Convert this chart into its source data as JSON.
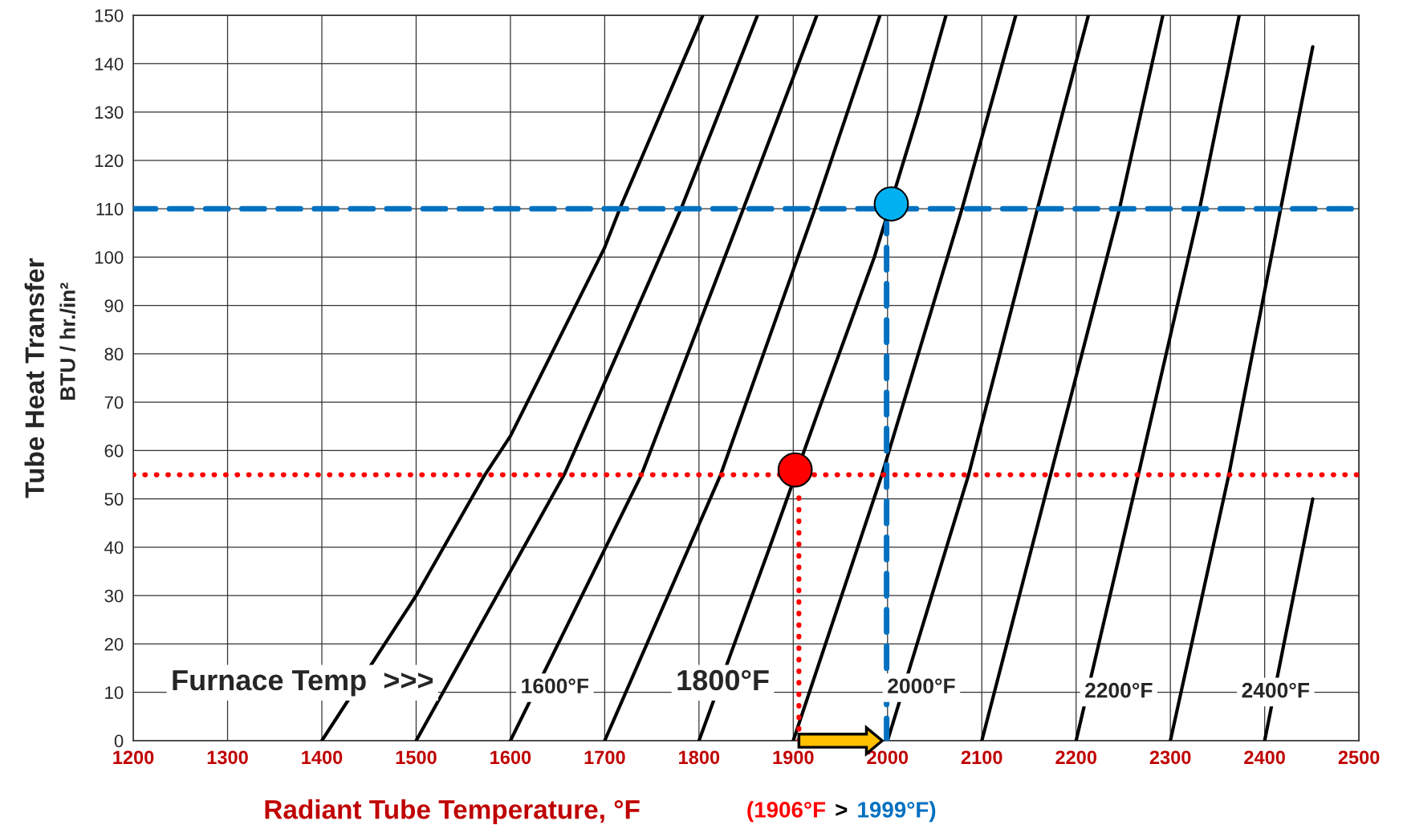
{
  "chart_data": {
    "type": "line",
    "xlabel": "Radiant Tube Temperature, °F",
    "ylabel": "Tube Heat Transfer\nBTU / hr./in²",
    "xlim": [
      1200,
      2500
    ],
    "xticks": [
      1200,
      1300,
      1400,
      1500,
      1600,
      1700,
      1800,
      1900,
      2000,
      2100,
      2200,
      2300,
      2400,
      2500
    ],
    "ylim": [
      0,
      150
    ],
    "yticks": [
      0,
      10,
      20,
      30,
      40,
      50,
      60,
      70,
      80,
      90,
      100,
      110,
      120,
      130,
      140,
      150
    ],
    "grid": true,
    "marker": "none",
    "series": [
      {
        "color": "#000000",
        "x": [
          1400,
          1500,
          1573,
          1600,
          1700,
          1716,
          1804
        ],
        "values": [
          0,
          30,
          55,
          63,
          102,
          110,
          150
        ]
      },
      {
        "color": "#000000",
        "x": [
          1500,
          1657,
          1781,
          1862
        ],
        "values": [
          0,
          55,
          110,
          150
        ]
      },
      {
        "color": "#000000",
        "x": [
          1600,
          1739,
          1847,
          1925
        ],
        "values": [
          0,
          55,
          110,
          150
        ]
      },
      {
        "color": "#000000",
        "x": [
          1700,
          1823,
          1923,
          1992
        ],
        "values": [
          0,
          55,
          110,
          150
        ]
      },
      {
        "color": "#000000",
        "x": [
          1800,
          1875,
          1930,
          1986,
          2033,
          2062
        ],
        "values": [
          0,
          40,
          70,
          100,
          130,
          150
        ]
      },
      {
        "color": "#000000",
        "x": [
          1900,
          1994,
          2079,
          2136
        ],
        "values": [
          0,
          55,
          110,
          150
        ]
      },
      {
        "color": "#000000",
        "x": [
          2000,
          2086,
          2159,
          2213
        ],
        "values": [
          0,
          55,
          110,
          150
        ]
      },
      {
        "color": "#000000",
        "x": [
          2100,
          2173,
          2246,
          2292
        ],
        "values": [
          0,
          55,
          110,
          150
        ]
      },
      {
        "color": "#000000",
        "x": [
          2200,
          2266,
          2331,
          2373
        ],
        "values": [
          0,
          55,
          110,
          150
        ]
      },
      {
        "color": "#000000",
        "x": [
          2300,
          2362,
          2417,
          2451
        ],
        "values": [
          0,
          55,
          110,
          143.5
        ]
      },
      {
        "color": "#000000",
        "x": [
          2400,
          2451
        ],
        "values": [
          0,
          50
        ]
      },
      {
        "color": "#ff0000",
        "line_style": "dotted",
        "x": [
          1906,
          1906
        ],
        "values": [
          0,
          51
        ]
      },
      {
        "color": "#0070c0",
        "line_style": "dashed",
        "x": [
          1999,
          1999
        ],
        "values": [
          0,
          107
        ]
      },
      {
        "color": "#0070c0",
        "line_style": "dashed",
        "x": [
          1200,
          2500
        ],
        "values": [
          110,
          110
        ]
      },
      {
        "color": "#ff0000",
        "line_style": "dotted",
        "x": [
          1200,
          2500
        ],
        "values": [
          55,
          55
        ]
      },
      {
        "type": "scatter",
        "marker": "circle",
        "color": "#ff0000",
        "x": [
          1902
        ],
        "values": [
          56
        ]
      },
      {
        "type": "scatter",
        "marker": "circle",
        "color": "#00b0f0",
        "x": [
          2004
        ],
        "values": [
          111
        ]
      }
    ],
    "annotations": [
      "Furnace Temp  >>>",
      "1600°F",
      "1800°F",
      "2000°F",
      "2200°F",
      "2400°F",
      "(1906°F",
      ">",
      "1999°F)"
    ]
  }
}
